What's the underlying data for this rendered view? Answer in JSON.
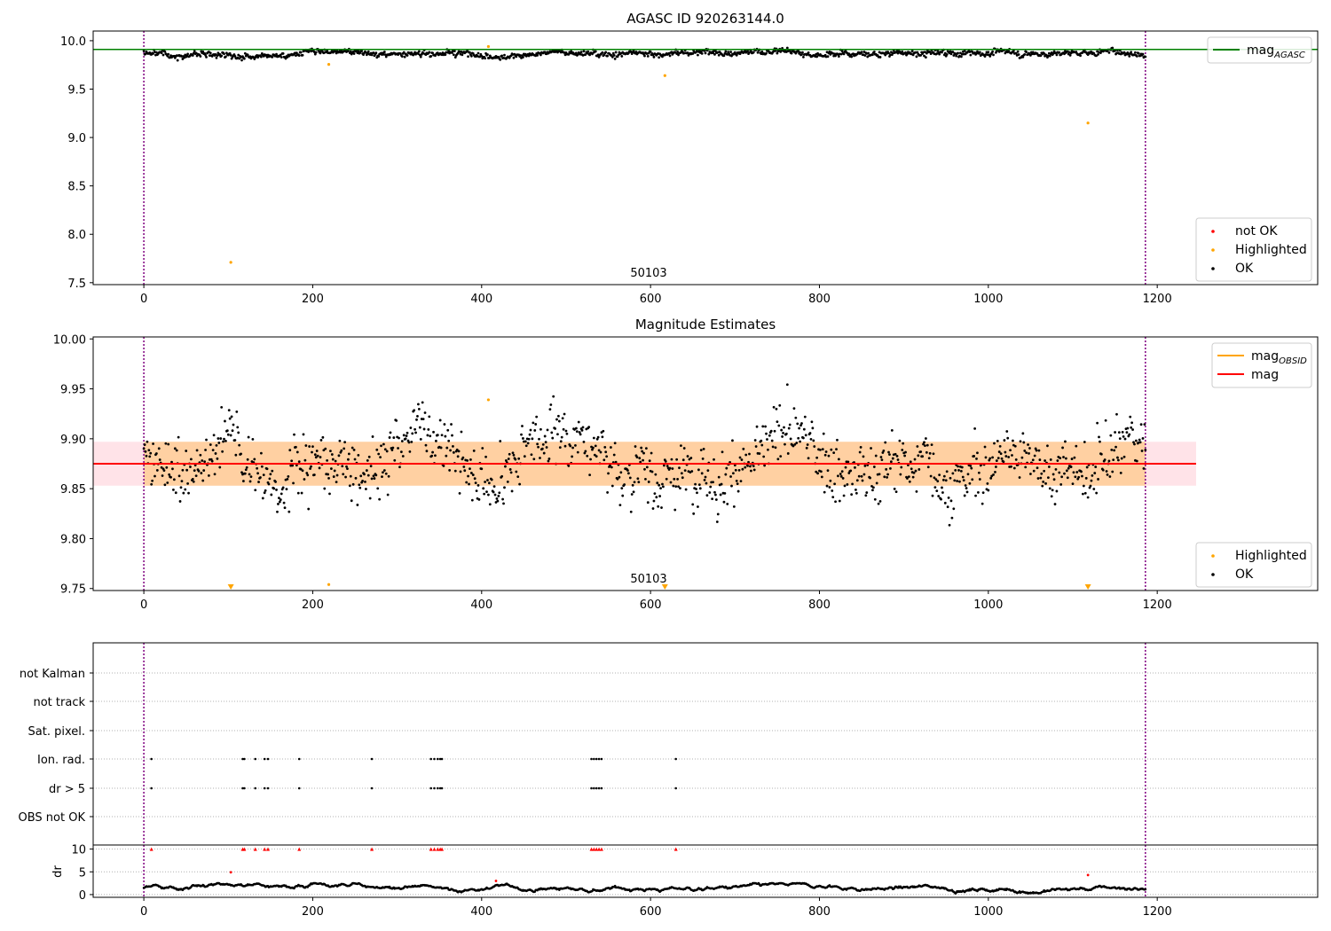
{
  "chart_data": [
    {
      "type": "scatter",
      "title": "AGASC ID 920263144.0",
      "obsid_label": "50103",
      "xlim": [
        -60,
        1390
      ],
      "ylim": [
        7.48,
        10.1
      ],
      "x_ticks": [
        0,
        200,
        400,
        600,
        800,
        1000,
        1200
      ],
      "y_ticks": [
        7.5,
        8.0,
        8.5,
        9.0,
        9.5,
        10.0
      ],
      "y_tick_labels": [
        "7.5",
        "8.0",
        "8.5",
        "9.0",
        "9.5",
        "10.0"
      ],
      "vlines": [
        0,
        1186
      ],
      "hline": {
        "name": "mag_AGASC",
        "y": 9.91,
        "color": "#008000"
      },
      "series": [
        {
          "name": "not OK",
          "color": "#ff0000",
          "points": []
        },
        {
          "name": "Highlighted",
          "color": "#ffa500",
          "points": [
            [
              103,
              7.71
            ],
            [
              219,
              9.755
            ],
            [
              408,
              9.94
            ],
            [
              617,
              9.64
            ],
            [
              1118,
              9.15
            ]
          ]
        },
        {
          "name": "OK",
          "color": "#000000",
          "count": 1187,
          "x_range": [
            0,
            1186
          ],
          "mean": 9.875,
          "spread": 0.025
        }
      ],
      "legends": [
        {
          "position": "top-right",
          "entries": [
            {
              "kind": "line",
              "label": "mag",
              "subscript": "AGASC",
              "color": "#008000"
            }
          ]
        },
        {
          "position": "lower-right",
          "entries": [
            {
              "kind": "dot",
              "label": "not OK",
              "color": "#ff0000"
            },
            {
              "kind": "dot",
              "label": "Highlighted",
              "color": "#ffa500"
            },
            {
              "kind": "dot",
              "label": "OK",
              "color": "#000000"
            }
          ]
        }
      ]
    },
    {
      "type": "scatter",
      "title": "Magnitude Estimates",
      "obsid_label": "50103",
      "xlim": [
        -60,
        1390
      ],
      "ylim": [
        9.748,
        10.002
      ],
      "x_ticks": [
        0,
        200,
        400,
        600,
        800,
        1000,
        1200
      ],
      "y_ticks": [
        9.75,
        9.8,
        9.85,
        9.9,
        9.95,
        10.0
      ],
      "y_tick_labels": [
        "9.75",
        "9.80",
        "9.85",
        "9.90",
        "9.95",
        "10.00"
      ],
      "vlines": [
        0,
        1186
      ],
      "mag": {
        "y": 9.875,
        "band": [
          9.853,
          9.897
        ],
        "x_range": [
          -60,
          1246
        ],
        "color": "#ff0000"
      },
      "mag_obsid": {
        "y": 9.875,
        "band": [
          9.853,
          9.897
        ],
        "x_range": [
          0,
          1186
        ],
        "color": "#ffa500"
      },
      "series": [
        {
          "name": "Highlighted",
          "color": "#ffa500",
          "points": [
            [
              219,
              9.754
            ],
            [
              408,
              9.939
            ]
          ],
          "offscale": [
            103,
            617,
            1118
          ]
        },
        {
          "name": "OK",
          "color": "#000000",
          "count": 1187,
          "x_range": [
            0,
            1186
          ],
          "mean": 9.875,
          "spread": 0.025
        }
      ],
      "legends": [
        {
          "position": "top-right",
          "entries": [
            {
              "kind": "line",
              "label": "mag",
              "subscript": "OBSID",
              "color": "#ffa500"
            },
            {
              "kind": "line",
              "label": "mag",
              "subscript": "",
              "color": "#ff0000"
            }
          ]
        },
        {
          "position": "lower-right",
          "entries": [
            {
              "kind": "dot",
              "label": "Highlighted",
              "color": "#ffa500"
            },
            {
              "kind": "dot",
              "label": "OK",
              "color": "#000000"
            }
          ]
        }
      ]
    },
    {
      "type": "scatter",
      "title": "",
      "xlim": [
        -60,
        1390
      ],
      "x_ticks": [
        0,
        200,
        400,
        600,
        800,
        1000,
        1200
      ],
      "vlines": [
        0,
        1186
      ],
      "flag_rows": [
        {
          "label": "not Kalman",
          "x": []
        },
        {
          "label": "not track",
          "x": []
        },
        {
          "label": "Sat. pixel.",
          "x": []
        },
        {
          "label": "Ion. rad.",
          "x": [
            9,
            117,
            119,
            132,
            143,
            147,
            184,
            270,
            340,
            344,
            348,
            351,
            353,
            530,
            533,
            536,
            539,
            542,
            630
          ]
        },
        {
          "label": "dr > 5",
          "x": [
            9,
            117,
            119,
            132,
            143,
            147,
            184,
            270,
            340,
            344,
            348,
            351,
            353,
            530,
            533,
            536,
            539,
            542,
            630
          ]
        },
        {
          "label": "OBS not OK",
          "x": []
        }
      ],
      "dr": {
        "ylabel": "dr",
        "ylim": [
          -0.6,
          10.9
        ],
        "y_ticks": [
          0,
          5,
          10
        ],
        "y_tick_labels": [
          "0",
          "5",
          "10"
        ],
        "clipped_at": 10,
        "not_ok_x": [
          9,
          117,
          119,
          132,
          143,
          147,
          184,
          270,
          340,
          344,
          348,
          351,
          353,
          530,
          533,
          536,
          539,
          542,
          630
        ],
        "extra_red_points": [
          [
            103,
            4.9
          ],
          [
            417,
            3.0
          ],
          [
            1118,
            4.3
          ]
        ],
        "ok_count": 1187,
        "ok_x_range": [
          0,
          1186
        ],
        "ok_mean": 1.4
      }
    }
  ]
}
